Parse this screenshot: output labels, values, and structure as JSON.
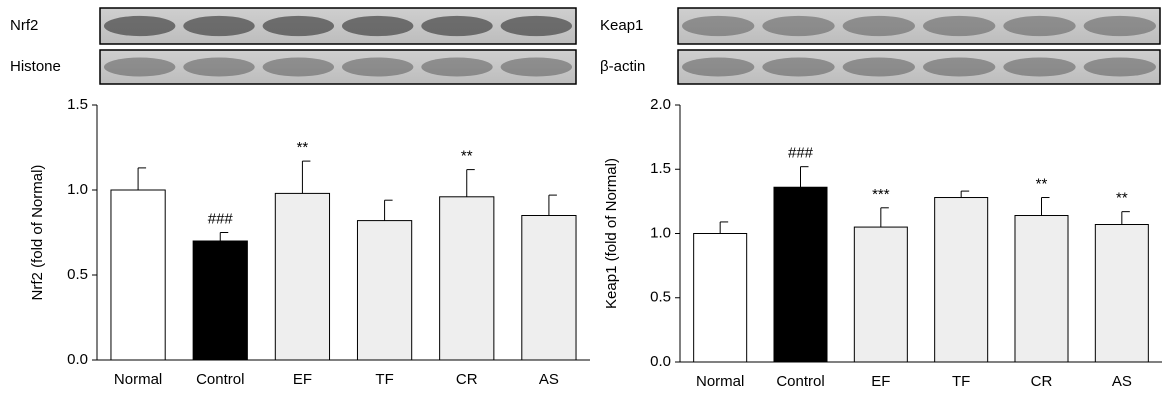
{
  "chart_data": [
    {
      "type": "bar",
      "blot_labels": [
        "Nrf2",
        "Histone"
      ],
      "ylabel": "Nrf2 (fold of Normal)",
      "categories": [
        "Normal",
        "Control",
        "EF",
        "TF",
        "CR",
        "AS"
      ],
      "values": [
        1.0,
        0.7,
        0.98,
        0.82,
        0.96,
        0.85
      ],
      "errors": [
        0.13,
        0.05,
        0.19,
        0.12,
        0.16,
        0.12
      ],
      "annotations": [
        null,
        "###",
        "**",
        null,
        "**",
        null
      ],
      "colors": [
        "#ffffff",
        "#000000",
        "#eeeeee",
        "#eeeeee",
        "#eeeeee",
        "#eeeeee"
      ],
      "ylim": [
        0,
        1.5
      ],
      "yticks": [
        {
          "value": 0,
          "label": "0.0"
        },
        0.5,
        {
          "value": 1,
          "label": "1.0"
        },
        1.5
      ]
    },
    {
      "type": "bar",
      "blot_labels": [
        "Keap1",
        "β-actin"
      ],
      "ylabel": "Keap1 (fold of Normal)",
      "categories": [
        "Normal",
        "Control",
        "EF",
        "TF",
        "CR",
        "AS"
      ],
      "values": [
        1.0,
        1.36,
        1.05,
        1.28,
        1.14,
        1.07
      ],
      "errors": [
        0.09,
        0.16,
        0.15,
        0.05,
        0.14,
        0.1
      ],
      "annotations": [
        null,
        "###",
        "***",
        null,
        "**",
        "**"
      ],
      "colors": [
        "#ffffff",
        "#000000",
        "#eeeeee",
        "#eeeeee",
        "#eeeeee",
        "#eeeeee"
      ],
      "ylim": [
        0,
        2
      ],
      "yticks": [
        {
          "value": 0,
          "label": "0.0"
        },
        0.5,
        {
          "value": 1,
          "label": "1.0"
        },
        1.5,
        {
          "value": 2,
          "label": "2.0"
        }
      ]
    }
  ]
}
